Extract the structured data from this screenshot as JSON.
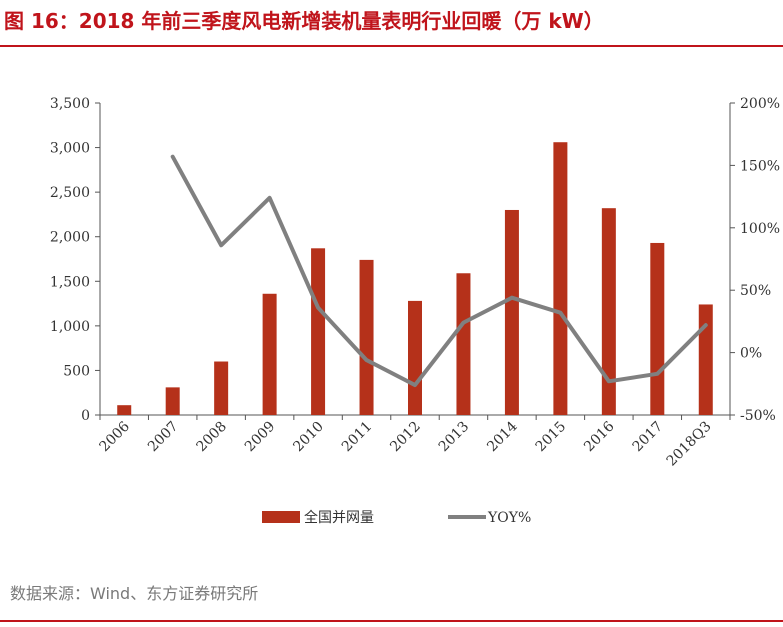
{
  "header": {
    "title": "图 16：2018 年前三季度风电新增装机量表明行业回暖（万 kW）"
  },
  "footer": {
    "source": "数据来源：Wind、东方证券研究所"
  },
  "colors": {
    "accent": "#c0141b",
    "bar": "#b5311a",
    "line": "#808080",
    "axis": "#555555"
  },
  "chart_data": {
    "type": "bar",
    "title": "2018 年前三季度风电新增装机量表明行业回暖（万 kW）",
    "categories": [
      "2006",
      "2007",
      "2008",
      "2009",
      "2010",
      "2011",
      "2012",
      "2013",
      "2014",
      "2015",
      "2016",
      "2017",
      "2018Q3"
    ],
    "series": [
      {
        "name": "全国并网量",
        "type": "bar",
        "axis": "left",
        "values": [
          110,
          310,
          600,
          1360,
          1870,
          1740,
          1280,
          1590,
          2300,
          3060,
          2320,
          1930,
          1240
        ]
      },
      {
        "name": "YOY%",
        "type": "line",
        "axis": "right",
        "values": [
          null,
          157,
          86,
          124,
          36,
          -6,
          -26,
          24,
          44,
          32,
          -23,
          -17,
          22
        ]
      }
    ],
    "yleft": {
      "ticks": [
        "3,500",
        "3,000",
        "2,500",
        "2,000",
        "1,500",
        "1,000",
        "500",
        "0"
      ],
      "ylim": [
        0,
        3500
      ]
    },
    "yright": {
      "ticks": [
        "200%",
        "150%",
        "100%",
        "50%",
        "0%",
        "-50%"
      ],
      "ylim": [
        -50,
        200
      ]
    },
    "legend": [
      "全国并网量",
      "YOY%"
    ],
    "legend_position": "bottom"
  }
}
